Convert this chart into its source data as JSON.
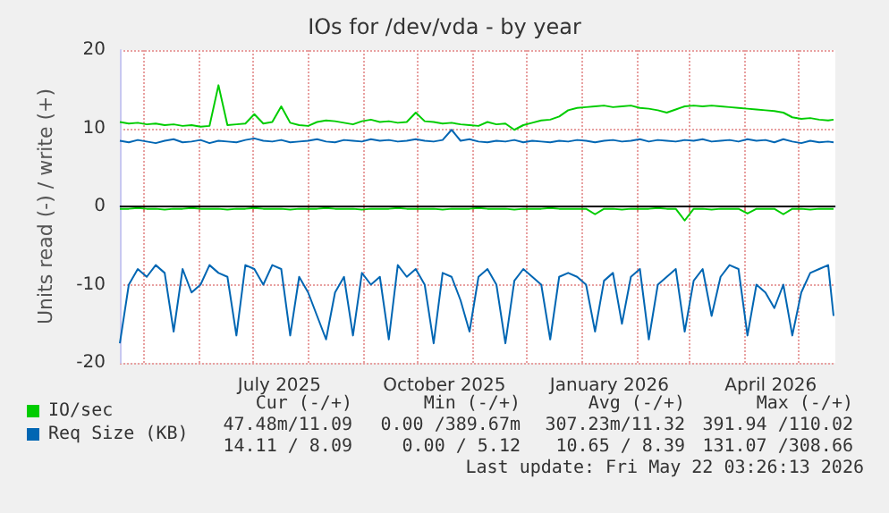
{
  "chart_data": {
    "type": "line",
    "title": "IOs for /dev/vda - by year",
    "ylabel": "Units read (-) / write (+)",
    "x": [
      "2025-04-18",
      "2025-04-23",
      "2025-04-28",
      "2025-05-03",
      "2025-05-08",
      "2025-05-13",
      "2025-05-18",
      "2025-05-23",
      "2025-05-28",
      "2025-06-02",
      "2025-06-07",
      "2025-06-12",
      "2025-06-17",
      "2025-06-22",
      "2025-06-27",
      "2025-07-02",
      "2025-07-07",
      "2025-07-12",
      "2025-07-17",
      "2025-07-22",
      "2025-07-27",
      "2025-08-01",
      "2025-08-06",
      "2025-08-11",
      "2025-08-16",
      "2025-08-21",
      "2025-08-26",
      "2025-08-31",
      "2025-09-05",
      "2025-09-10",
      "2025-09-15",
      "2025-09-20",
      "2025-09-25",
      "2025-09-30",
      "2025-10-05",
      "2025-10-10",
      "2025-10-15",
      "2025-10-20",
      "2025-10-25",
      "2025-10-30",
      "2025-11-04",
      "2025-11-09",
      "2025-11-14",
      "2025-11-19",
      "2025-11-24",
      "2025-11-29",
      "2025-12-04",
      "2025-12-09",
      "2025-12-14",
      "2025-12-19",
      "2025-12-24",
      "2025-12-29",
      "2026-01-03",
      "2026-01-08",
      "2026-01-13",
      "2026-01-18",
      "2026-01-23",
      "2026-01-28",
      "2026-02-02",
      "2026-02-07",
      "2026-02-12",
      "2026-02-17",
      "2026-02-22",
      "2026-02-27",
      "2026-03-04",
      "2026-03-09",
      "2026-03-14",
      "2026-03-19",
      "2026-03-24",
      "2026-03-29",
      "2026-04-03",
      "2026-04-08",
      "2026-04-13",
      "2026-04-18",
      "2026-04-23",
      "2026-04-28",
      "2026-05-03",
      "2026-05-08",
      "2026-05-13",
      "2026-05-18",
      "2026-05-21"
    ],
    "series": [
      {
        "name": "IO/sec",
        "color": "#00cc00",
        "values": [
          10.8,
          10.6,
          10.7,
          10.5,
          10.6,
          10.4,
          10.5,
          10.3,
          10.4,
          10.2,
          10.3,
          15.5,
          10.4,
          10.5,
          10.6,
          11.8,
          10.6,
          10.8,
          12.8,
          10.7,
          10.4,
          10.3,
          10.8,
          11.0,
          10.9,
          10.7,
          10.5,
          10.9,
          11.1,
          10.8,
          10.9,
          10.7,
          10.8,
          12.0,
          10.9,
          10.8,
          10.6,
          10.7,
          10.5,
          10.4,
          10.3,
          10.8,
          10.5,
          10.6,
          9.8,
          10.4,
          10.7,
          11.0,
          11.1,
          11.5,
          12.3,
          12.6,
          12.7,
          12.8,
          12.9,
          12.7,
          12.8,
          12.9,
          12.6,
          12.5,
          12.3,
          12.0,
          12.4,
          12.8,
          12.9,
          12.8,
          12.9,
          12.8,
          12.7,
          12.6,
          12.5,
          12.4,
          12.3,
          12.2,
          12.0,
          11.4,
          11.2,
          11.3,
          11.1,
          11.0,
          11.1
        ]
      },
      {
        "color": "#00cc00",
        "values": [
          -0.3,
          -0.3,
          -0.2,
          -0.3,
          -0.3,
          -0.4,
          -0.3,
          -0.3,
          -0.2,
          -0.3,
          -0.3,
          -0.3,
          -0.4,
          -0.3,
          -0.3,
          -0.2,
          -0.3,
          -0.3,
          -0.3,
          -0.4,
          -0.3,
          -0.3,
          -0.3,
          -0.2,
          -0.3,
          -0.3,
          -0.3,
          -0.4,
          -0.3,
          -0.3,
          -0.3,
          -0.2,
          -0.3,
          -0.3,
          -0.3,
          -0.3,
          -0.4,
          -0.3,
          -0.3,
          -0.3,
          -0.2,
          -0.3,
          -0.3,
          -0.3,
          -0.4,
          -0.3,
          -0.3,
          -0.3,
          -0.2,
          -0.3,
          -0.3,
          -0.3,
          -0.3,
          -1.0,
          -0.3,
          -0.3,
          -0.4,
          -0.3,
          -0.3,
          -0.3,
          -0.2,
          -0.3,
          -0.3,
          -1.8,
          -0.3,
          -0.3,
          -0.4,
          -0.3,
          -0.3,
          -0.3,
          -0.9,
          -0.3,
          -0.3,
          -0.3,
          -1.0,
          -0.3,
          -0.3,
          -0.4,
          -0.3,
          -0.3,
          -0.3
        ]
      },
      {
        "name": "Req Size (KB)",
        "color": "#0066b3",
        "values": [
          8.4,
          8.2,
          8.5,
          8.3,
          8.1,
          8.4,
          8.6,
          8.2,
          8.3,
          8.5,
          8.1,
          8.4,
          8.3,
          8.2,
          8.5,
          8.7,
          8.4,
          8.3,
          8.5,
          8.2,
          8.3,
          8.4,
          8.6,
          8.3,
          8.2,
          8.5,
          8.4,
          8.3,
          8.6,
          8.4,
          8.5,
          8.3,
          8.4,
          8.6,
          8.4,
          8.3,
          8.5,
          9.8,
          8.4,
          8.6,
          8.3,
          8.2,
          8.4,
          8.3,
          8.5,
          8.2,
          8.4,
          8.3,
          8.2,
          8.4,
          8.3,
          8.5,
          8.4,
          8.2,
          8.4,
          8.5,
          8.3,
          8.4,
          8.6,
          8.3,
          8.5,
          8.4,
          8.3,
          8.5,
          8.4,
          8.6,
          8.3,
          8.4,
          8.5,
          8.3,
          8.6,
          8.4,
          8.5,
          8.2,
          8.6,
          8.3,
          8.1,
          8.4,
          8.2,
          8.3,
          8.2
        ]
      },
      {
        "color": "#0066b3",
        "values": [
          -17.5,
          -10,
          -8,
          -9,
          -7.5,
          -8.5,
          -16,
          -8,
          -11,
          -10,
          -7.5,
          -8.5,
          -9,
          -16.5,
          -7.5,
          -8,
          -10,
          -7.5,
          -8,
          -16.5,
          -9,
          -11,
          -14,
          -17,
          -11,
          -9,
          -16.5,
          -8.5,
          -10,
          -9,
          -17,
          -7.5,
          -9,
          -8,
          -10,
          -17.5,
          -8.5,
          -9,
          -12,
          -16,
          -9,
          -8,
          -10,
          -17.5,
          -9.5,
          -8,
          -9,
          -10,
          -17,
          -9,
          -8.5,
          -9,
          -10,
          -16,
          -9.5,
          -8.5,
          -15,
          -9,
          -8,
          -17,
          -10,
          -9,
          -8,
          -16,
          -9.5,
          -8,
          -14,
          -9,
          -7.5,
          -8,
          -16.5,
          -10,
          -11,
          -13,
          -10,
          -16.5,
          -11,
          -8.5,
          -8,
          -7.5,
          -14
        ]
      }
    ],
    "xlim": [
      "2025-04-18",
      "2026-05-22"
    ],
    "xticks": [
      {
        "value": "2025-05-01",
        "label": null
      },
      {
        "value": "2025-06-01",
        "label": null
      },
      {
        "value": "2025-07-01",
        "label": null
      },
      {
        "value": "2025-07-16",
        "label": "July 2025"
      },
      {
        "value": "2025-08-01",
        "label": null
      },
      {
        "value": "2025-09-01",
        "label": null
      },
      {
        "value": "2025-10-01",
        "label": null
      },
      {
        "value": "2025-10-16",
        "label": "October 2025"
      },
      {
        "value": "2025-11-01",
        "label": null
      },
      {
        "value": "2025-12-01",
        "label": null
      },
      {
        "value": "2026-01-01",
        "label": null
      },
      {
        "value": "2026-01-16",
        "label": "January 2026"
      },
      {
        "value": "2026-02-01",
        "label": null
      },
      {
        "value": "2026-03-01",
        "label": null
      },
      {
        "value": "2026-04-01",
        "label": null
      },
      {
        "value": "2026-04-16",
        "label": "April 2026"
      },
      {
        "value": "2026-05-01",
        "label": null
      }
    ],
    "ylim": [
      -20,
      20
    ],
    "yticks": [
      -20,
      -10,
      0,
      10,
      20
    ],
    "ref_lines": [
      {
        "axis": "y",
        "value": 0,
        "color": "#000000"
      }
    ],
    "grid": true,
    "legend": "bottom left",
    "marker": "none",
    "line_style": "solid",
    "annotations": [
      "Cur (-/+)",
      "Min (-/+)",
      "Avg (-/+)",
      "Max (-/+)",
      "47.48m/11.09",
      "0.00 /389.67m",
      "307.23m/11.32",
      "391.94 /110.02",
      "14.11 / 8.09",
      "0.00 / 5.12",
      "10.65 / 8.39",
      "131.07 /308.66",
      "Last update: Fri May 22 03:26:13 2026"
    ]
  }
}
